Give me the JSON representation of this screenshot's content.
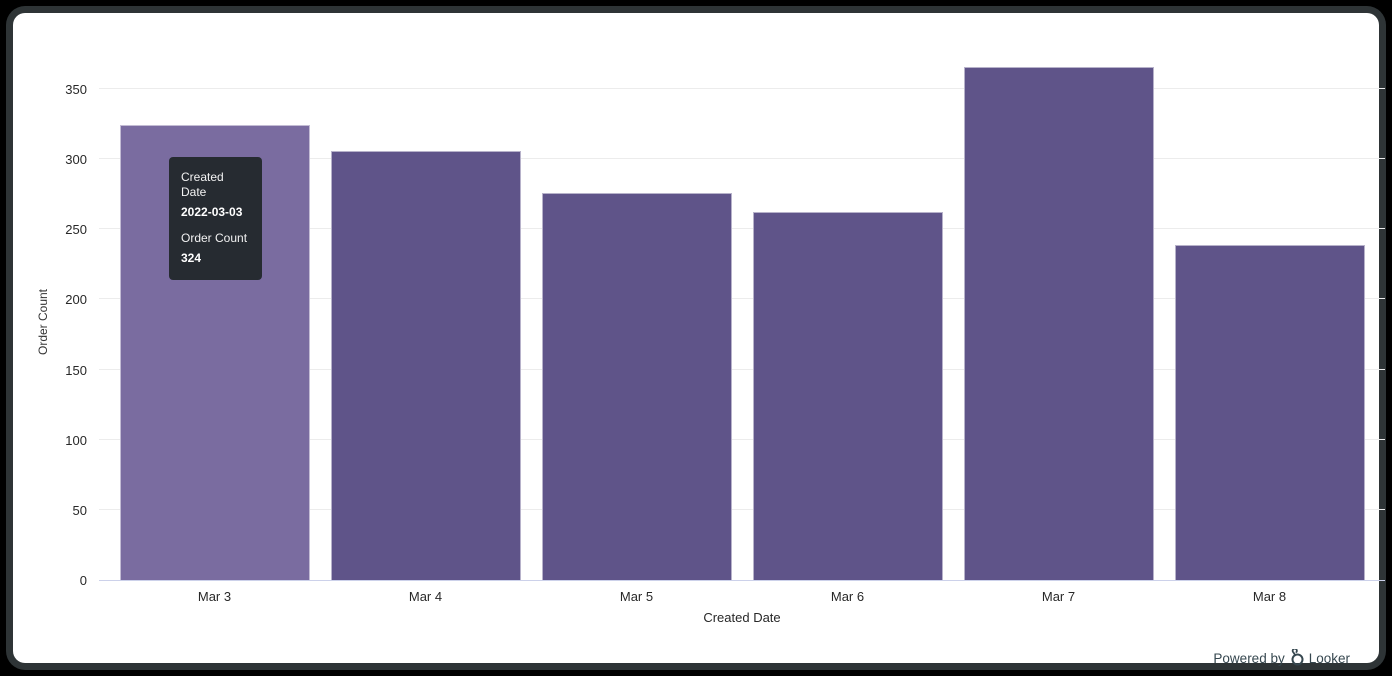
{
  "chart_data": {
    "type": "bar",
    "categories": [
      "Mar 3",
      "Mar 4",
      "Mar 5",
      "Mar 6",
      "Mar 7",
      "Mar 8"
    ],
    "values": [
      324,
      306,
      276,
      262,
      366,
      239
    ],
    "title": "",
    "xlabel": "Created Date",
    "ylabel": "Order Count",
    "ylim": [
      0,
      376
    ],
    "yticks": [
      0,
      50,
      100,
      150,
      200,
      250,
      300,
      350
    ],
    "grid": true,
    "legend": "none",
    "highlighted_index": 0,
    "bar_color": "#5F5489",
    "bar_hover_color": "#7A6CA0"
  },
  "tooltip": {
    "dimension_label": "Created Date",
    "dimension_value": "2022-03-03",
    "measure_label": "Order Count",
    "measure_value": "324",
    "background": "#262b31"
  },
  "footer": {
    "powered_by_label": "Powered by",
    "brand_label": "Looker"
  }
}
